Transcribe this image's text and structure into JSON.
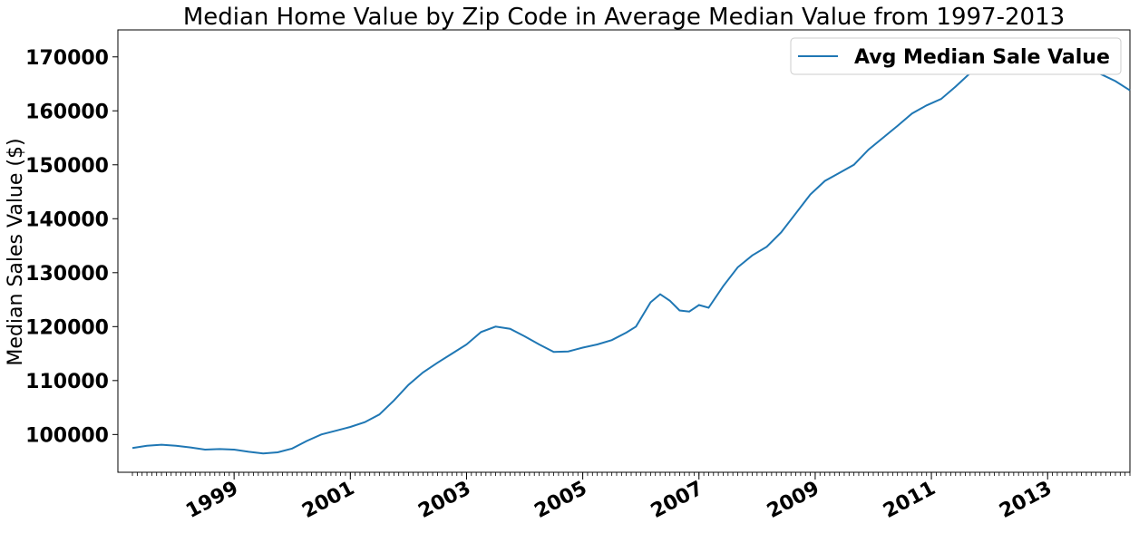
{
  "chart_data": {
    "type": "line",
    "title": "Median Home Value by Zip Code in Average Median Value from 1997-2013",
    "xlabel": "",
    "ylabel": "Median Sales Value ($)",
    "xlim": [
      "1997-01",
      "2014-06"
    ],
    "ylim": [
      93000,
      175000
    ],
    "grid": false,
    "legend_position": "top-right",
    "line_color": "#1f77b4",
    "x_ticks": [
      "1999",
      "2001",
      "2003",
      "2005",
      "2007",
      "2009",
      "2011",
      "2013"
    ],
    "y_ticks": [
      100000,
      110000,
      120000,
      130000,
      140000,
      150000,
      160000,
      170000
    ],
    "series": [
      {
        "name": "Avg Median Sale Value",
        "points": [
          [
            "1997-04",
            97500
          ],
          [
            "1997-07",
            97900
          ],
          [
            "1997-10",
            98100
          ],
          [
            "1998-01",
            97900
          ],
          [
            "1998-04",
            97600
          ],
          [
            "1998-07",
            97200
          ],
          [
            "1998-10",
            97300
          ],
          [
            "1999-01",
            97200
          ],
          [
            "1999-04",
            96800
          ],
          [
            "1999-07",
            96500
          ],
          [
            "1999-10",
            96700
          ],
          [
            "2000-01",
            97400
          ],
          [
            "2000-04",
            98800
          ],
          [
            "2000-07",
            100000
          ],
          [
            "2000-10",
            100700
          ],
          [
            "2001-01",
            101400
          ],
          [
            "2001-04",
            102300
          ],
          [
            "2001-07",
            103700
          ],
          [
            "2001-10",
            106300
          ],
          [
            "2002-01",
            109200
          ],
          [
            "2002-04",
            111500
          ],
          [
            "2002-07",
            113300
          ],
          [
            "2002-10",
            115000
          ],
          [
            "2003-01",
            116700
          ],
          [
            "2003-04",
            119000
          ],
          [
            "2003-07",
            120000
          ],
          [
            "2003-10",
            119600
          ],
          [
            "2004-01",
            118200
          ],
          [
            "2004-04",
            116700
          ],
          [
            "2004-07",
            115300
          ],
          [
            "2004-10",
            115400
          ],
          [
            "2005-01",
            116100
          ],
          [
            "2005-04",
            116700
          ],
          [
            "2005-07",
            117500
          ],
          [
            "2005-10",
            118900
          ],
          [
            "2005-12",
            120000
          ],
          [
            "2006-03",
            124500
          ],
          [
            "2006-05",
            126000
          ],
          [
            "2006-07",
            124800
          ],
          [
            "2006-09",
            123000
          ],
          [
            "2006-11",
            122800
          ],
          [
            "2007-01",
            124000
          ],
          [
            "2007-03",
            123500
          ],
          [
            "2007-06",
            127500
          ],
          [
            "2007-09",
            131000
          ],
          [
            "2007-12",
            133200
          ],
          [
            "2008-03",
            134800
          ],
          [
            "2008-06",
            137500
          ],
          [
            "2008-09",
            141000
          ],
          [
            "2008-12",
            144500
          ],
          [
            "2009-03",
            147000
          ],
          [
            "2009-06",
            148500
          ],
          [
            "2009-09",
            150000
          ],
          [
            "2009-12",
            152800
          ],
          [
            "2010-03",
            155000
          ],
          [
            "2010-06",
            157200
          ],
          [
            "2010-09",
            159500
          ],
          [
            "2010-12",
            161000
          ],
          [
            "2011-03",
            162200
          ],
          [
            "2011-06",
            164500
          ],
          [
            "2011-09",
            167000
          ],
          [
            "2011-12",
            168800
          ],
          [
            "2012-03",
            169700
          ],
          [
            "2012-06",
            170200
          ],
          [
            "2012-09",
            171000
          ],
          [
            "2012-12",
            171300
          ],
          [
            "2013-03",
            170000
          ],
          [
            "2013-06",
            168700
          ],
          [
            "2013-09",
            167700
          ],
          [
            "2013-12",
            166800
          ],
          [
            "2014-03",
            165500
          ],
          [
            "2014-06",
            163800
          ]
        ]
      }
    ]
  }
}
